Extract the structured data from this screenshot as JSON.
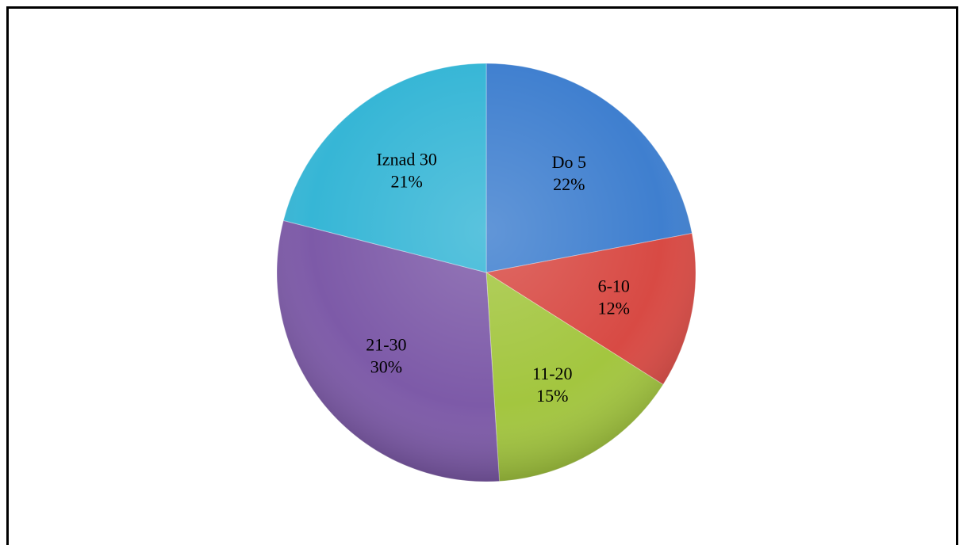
{
  "chart_data": {
    "type": "pie",
    "title": "",
    "categories": [
      "Do 5",
      "6-10",
      "11-20",
      "21-30",
      "Iznad 30"
    ],
    "values": [
      22,
      12,
      15,
      30,
      21
    ],
    "percent_labels": [
      "22%",
      "12%",
      "15%",
      "30%",
      "21%"
    ],
    "colors": [
      "#3f7fcf",
      "#d84a44",
      "#a3c63f",
      "#7d5aa8",
      "#36b6d6"
    ],
    "start_angle_deg": 0,
    "direction": "clockwise",
    "legend": "none"
  }
}
